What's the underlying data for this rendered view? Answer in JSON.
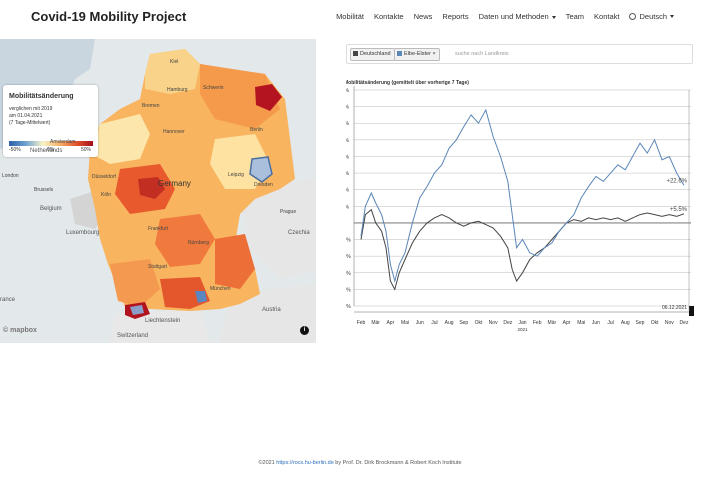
{
  "header": {
    "brand": "Covid-19 Mobility Project",
    "nav": {
      "mobilitaet": "Mobilität",
      "kontakte": "Kontakte",
      "news": "News",
      "reports": "Reports",
      "daten": "Daten und Methoden",
      "team": "Team",
      "kontakt": "Kontakt",
      "language": "Deutsch"
    }
  },
  "map": {
    "legend": {
      "title": "Mobilitätsänderung",
      "line1": "verglichen mit 2019",
      "line2": "am 01.04.2021",
      "line3": "(7 Tage-Mittelwert)",
      "tick_min": "-50%",
      "tick_mid": "0%",
      "tick_max": "50%"
    },
    "labels": {
      "germany": "Germany",
      "netherlands": "Netherlands",
      "belgium": "Belgium",
      "luxembourg": "Luxembourg",
      "czechia": "Czechia",
      "liechtenstein": "Liechtenstein",
      "switzerland": "Switzerland",
      "france": "rance",
      "austria": "Austria",
      "london": "London",
      "brussels": "Brussels",
      "amsterdam": "Amsterdam",
      "hamburg": "Hamburg",
      "berlin": "Berlin",
      "hannover": "Hannover",
      "bremen": "Bremen",
      "dresden": "Dresden",
      "leipzig": "Leipzig",
      "frankfurt": "Frankfurt",
      "stuttgart": "Stuttgart",
      "nuernberg": "Nürnberg",
      "muenchen": "München",
      "koeln": "Köln",
      "duesseldorf": "Düsseldorf",
      "prague": "Prague",
      "schwerin": "Schwerin",
      "kiel": "Kiel"
    },
    "attribution": "© mapbox",
    "info_symbol": "i"
  },
  "selector": {
    "chip1": "Deutschland",
    "chip2": "Elbe-Elster",
    "chip_close": "×",
    "placeholder": "suche nach Landkreis",
    "colors": {
      "deutschland": "#444444",
      "elbe_elster": "#5b86b8"
    }
  },
  "chart_data": {
    "type": "line",
    "title": "Mobilitätsänderung (gemittelt über vorherige 7 Tage)",
    "ylim": [
      -50,
      80
    ],
    "yticks": [
      "80%",
      "70%",
      "60%",
      "50%",
      "40%",
      "30%",
      "20%",
      "10%",
      "0%",
      "-10%",
      "-20%",
      "-30%",
      "-40%",
      "-50%"
    ],
    "xticks": [
      "Feb",
      "Mär",
      "Apr",
      "Mai",
      "Jun",
      "Jul",
      "Aug",
      "Sep",
      "Okt",
      "Nov",
      "Dez",
      "Jan",
      "Feb",
      "Mär",
      "Apr",
      "Mai",
      "Jun",
      "Jul",
      "Aug",
      "Sep",
      "Okt",
      "Nov",
      "Dez"
    ],
    "year_label": "2021",
    "date_label": "06.12.2021",
    "series": [
      {
        "name": "Deutschland",
        "color": "#444444",
        "end_label": "+5.5%",
        "points": [
          [
            0,
            -10
          ],
          [
            0.3,
            5
          ],
          [
            0.7,
            8
          ],
          [
            1.0,
            0
          ],
          [
            1.4,
            -5
          ],
          [
            1.7,
            -15
          ],
          [
            2.0,
            -35
          ],
          [
            2.3,
            -40
          ],
          [
            2.6,
            -30
          ],
          [
            3.0,
            -22
          ],
          [
            3.5,
            -12
          ],
          [
            4.0,
            -5
          ],
          [
            4.5,
            0
          ],
          [
            5.0,
            3
          ],
          [
            5.5,
            5
          ],
          [
            6.0,
            3
          ],
          [
            6.5,
            0
          ],
          [
            7.0,
            -2
          ],
          [
            7.5,
            0
          ],
          [
            8.0,
            1
          ],
          [
            8.5,
            -1
          ],
          [
            9.0,
            -3
          ],
          [
            9.5,
            -8
          ],
          [
            10.0,
            -15
          ],
          [
            10.3,
            -28
          ],
          [
            10.6,
            -35
          ],
          [
            11.0,
            -30
          ],
          [
            11.5,
            -22
          ],
          [
            12.0,
            -18
          ],
          [
            12.5,
            -15
          ],
          [
            13.0,
            -10
          ],
          [
            13.5,
            -5
          ],
          [
            14.0,
            0
          ],
          [
            14.5,
            2
          ],
          [
            15.0,
            1
          ],
          [
            15.5,
            3
          ],
          [
            16.0,
            2
          ],
          [
            16.5,
            3
          ],
          [
            17.0,
            2
          ],
          [
            17.5,
            3
          ],
          [
            18.0,
            1
          ],
          [
            18.5,
            3
          ],
          [
            19.0,
            5
          ],
          [
            19.5,
            6
          ],
          [
            20.0,
            5
          ],
          [
            20.5,
            4
          ],
          [
            21.0,
            5
          ],
          [
            21.5,
            4
          ],
          [
            22.0,
            5.5
          ]
        ]
      },
      {
        "name": "Elbe-Elster",
        "color": "#5b86b8",
        "end_label": "+22.6%",
        "points": [
          [
            0,
            -8
          ],
          [
            0.3,
            10
          ],
          [
            0.7,
            18
          ],
          [
            1.0,
            12
          ],
          [
            1.4,
            5
          ],
          [
            1.7,
            -5
          ],
          [
            2.0,
            -25
          ],
          [
            2.3,
            -35
          ],
          [
            2.6,
            -25
          ],
          [
            3.0,
            -18
          ],
          [
            3.5,
            0
          ],
          [
            4.0,
            15
          ],
          [
            4.5,
            22
          ],
          [
            5.0,
            30
          ],
          [
            5.5,
            35
          ],
          [
            6.0,
            45
          ],
          [
            6.5,
            50
          ],
          [
            7.0,
            58
          ],
          [
            7.5,
            65
          ],
          [
            8.0,
            60
          ],
          [
            8.5,
            68
          ],
          [
            9.0,
            52
          ],
          [
            9.5,
            40
          ],
          [
            10.0,
            25
          ],
          [
            10.3,
            5
          ],
          [
            10.6,
            -15
          ],
          [
            11.0,
            -10
          ],
          [
            11.5,
            -18
          ],
          [
            12.0,
            -20
          ],
          [
            12.5,
            -15
          ],
          [
            13.0,
            -12
          ],
          [
            13.5,
            -5
          ],
          [
            14.0,
            0
          ],
          [
            14.5,
            5
          ],
          [
            15.0,
            15
          ],
          [
            15.5,
            22
          ],
          [
            16.0,
            28
          ],
          [
            16.5,
            25
          ],
          [
            17.0,
            30
          ],
          [
            17.5,
            35
          ],
          [
            18.0,
            32
          ],
          [
            18.5,
            40
          ],
          [
            19.0,
            48
          ],
          [
            19.5,
            42
          ],
          [
            20.0,
            50
          ],
          [
            20.5,
            38
          ],
          [
            21.0,
            40
          ],
          [
            21.5,
            30
          ],
          [
            22.0,
            22.6
          ]
        ]
      }
    ]
  },
  "footer": {
    "prefix": "©2021 ",
    "link": "https://rocs.hu-berlin.de",
    "suffix": " by Prof. Dr. Dirk Brockmann & Robert Koch Institute"
  }
}
